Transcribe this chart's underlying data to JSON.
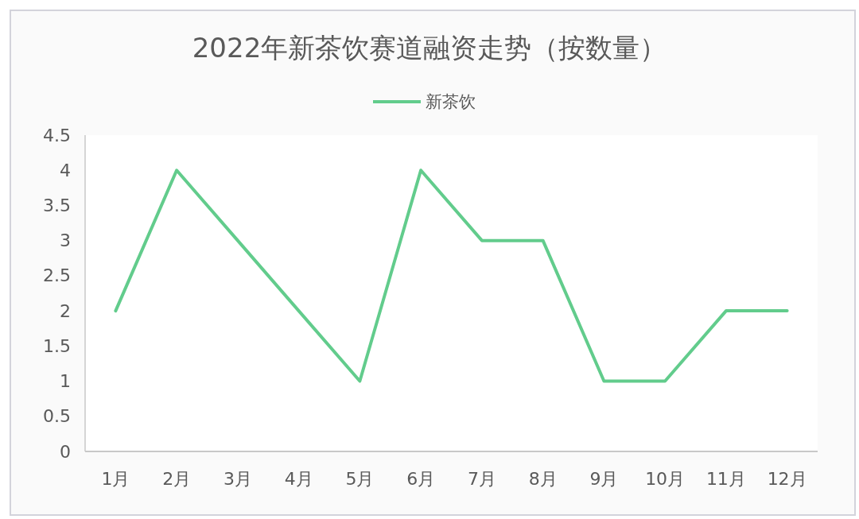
{
  "chart_data": {
    "type": "line",
    "title": "2022年新茶饮赛道融资走势（按数量）",
    "categories": [
      "1月",
      "2月",
      "3月",
      "4月",
      "5月",
      "6月",
      "7月",
      "8月",
      "9月",
      "10月",
      "11月",
      "12月"
    ],
    "series": [
      {
        "name": "新茶饮",
        "color": "#62cc8c",
        "values": [
          2,
          4,
          3,
          2,
          1,
          4,
          3,
          3,
          1,
          1,
          2,
          2
        ]
      }
    ],
    "ylim": [
      0,
      4.5
    ],
    "yticks": [
      0,
      0.5,
      1,
      1.5,
      2,
      2.5,
      3,
      3.5,
      4,
      4.5
    ],
    "legend": "top"
  }
}
